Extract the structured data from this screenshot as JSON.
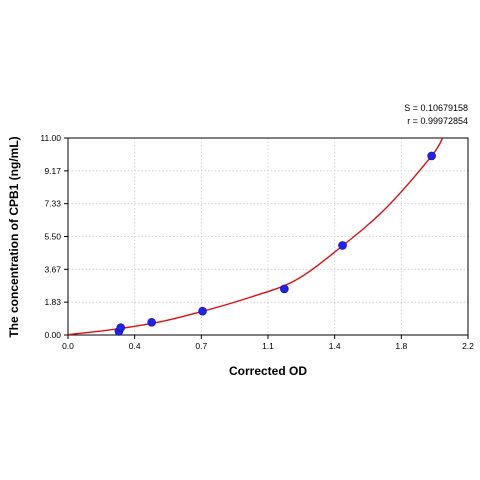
{
  "chart_data": {
    "type": "scatter",
    "xlabel": "Corrected OD",
    "ylabel": "The concentration of CPB1 (ng/mL)",
    "xlim": [
      0.0,
      2.2
    ],
    "ylim": [
      0.0,
      11.0
    ],
    "x_ticks": [
      "0.0",
      "0.4",
      "0.7",
      "1.1",
      "1.4",
      "1.8",
      "2.2"
    ],
    "y_ticks": [
      "0.00",
      "1.83",
      "3.67",
      "5.50",
      "7.33",
      "9.17",
      "11.00"
    ],
    "grid": true,
    "stats": [
      "S = 0.10679158",
      "r = 0.99972854"
    ],
    "series": [
      {
        "kind": "points",
        "color": "#2222ee",
        "x": [
          0.28,
          0.29,
          0.46,
          0.74,
          1.19,
          1.51,
          2.0
        ],
        "y": [
          0.2,
          0.41,
          0.71,
          1.33,
          2.57,
          5.0,
          10.0
        ]
      },
      {
        "kind": "fitted-curve",
        "color": "#e01010",
        "x": [
          0.0,
          0.25,
          0.5,
          0.75,
          1.0,
          1.25,
          1.5,
          1.75,
          2.0,
          2.06
        ],
        "y": [
          0.02,
          0.31,
          0.72,
          1.35,
          2.1,
          3.05,
          4.9,
          7.1,
          10.0,
          11.0
        ]
      }
    ]
  }
}
